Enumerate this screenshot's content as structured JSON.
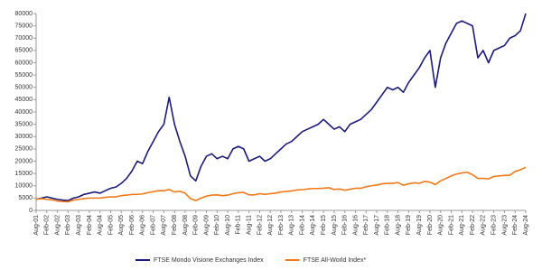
{
  "chart_data": {
    "type": "line",
    "categories": [
      "Aug-01",
      null,
      "Feb-02",
      null,
      "Aug-02",
      null,
      "Feb-03",
      null,
      "Aug-03",
      null,
      "Feb-04",
      null,
      "Aug-04",
      null,
      "Feb-05",
      null,
      "Aug-05",
      null,
      "Feb-06",
      null,
      "Aug-06",
      null,
      "Feb-07",
      null,
      "Aug-07",
      null,
      "Feb-08",
      null,
      "Aug-08",
      null,
      "Feb-09",
      null,
      "Aug-09",
      null,
      "Feb-10",
      null,
      "Aug-10",
      null,
      "Feb-11",
      null,
      "Aug-11",
      null,
      "Feb-12",
      null,
      "Aug-12",
      null,
      "Feb-13",
      null,
      "Aug-13",
      null,
      "Feb-14",
      null,
      "Aug-14",
      null,
      "Feb-15",
      null,
      "Aug-15",
      null,
      "Feb-16",
      null,
      "Aug-16",
      null,
      "Feb-17",
      null,
      "Aug-17",
      null,
      "Feb-18",
      null,
      "Aug-18",
      null,
      "Feb-19",
      null,
      "Aug-19",
      null,
      "Feb-20",
      null,
      "Aug-20",
      null,
      "Feb-21",
      null,
      "Aug-21",
      null,
      "Feb-22",
      null,
      "Aug-22",
      null,
      "Feb-23",
      null,
      "Aug-23",
      null,
      "Feb-24",
      null,
      "Aug-24"
    ],
    "series": [
      {
        "name": "FTSE Mondo Visione Exchanges Index",
        "color": "#1c1c78",
        "values": [
          4500,
          5000,
          5500,
          5000,
          4500,
          4200,
          4000,
          5000,
          5500,
          6500,
          7000,
          7500,
          7000,
          8000,
          9000,
          9500,
          11000,
          13000,
          16000,
          20000,
          19000,
          24000,
          28000,
          32000,
          35000,
          46000,
          35000,
          28000,
          22000,
          14000,
          12000,
          18000,
          22000,
          23000,
          21000,
          22000,
          21000,
          25000,
          26000,
          25000,
          20000,
          21000,
          22000,
          20000,
          21000,
          23000,
          25000,
          27000,
          28000,
          30000,
          32000,
          33000,
          34000,
          35000,
          37000,
          35000,
          33000,
          34000,
          32000,
          35000,
          36000,
          37000,
          39000,
          41000,
          44000,
          47000,
          50000,
          49000,
          50000,
          48000,
          52000,
          55000,
          58000,
          62000,
          65000,
          50000,
          62000,
          68000,
          72000,
          76000,
          77000,
          76000,
          75000,
          62000,
          65000,
          60000,
          65000,
          66000,
          67000,
          70000,
          71000,
          73000,
          80000
        ]
      },
      {
        "name": "FTSE All-World Index*",
        "color": "#f07a1a",
        "values": [
          4500,
          4800,
          4500,
          4300,
          3800,
          3600,
          3500,
          4200,
          4500,
          4800,
          5000,
          5000,
          5000,
          5300,
          5500,
          5500,
          6000,
          6200,
          6500,
          6500,
          6700,
          7200,
          7600,
          8000,
          8000,
          8500,
          7500,
          7800,
          7000,
          4800,
          4000,
          5000,
          5800,
          6200,
          6300,
          6000,
          6200,
          6800,
          7200,
          7300,
          6300,
          6300,
          6800,
          6500,
          6800,
          7000,
          7500,
          7700,
          7900,
          8300,
          8400,
          8700,
          8900,
          8900,
          9000,
          9200,
          8500,
          8700,
          8200,
          8600,
          9000,
          9000,
          9600,
          10000,
          10300,
          10800,
          11000,
          11000,
          11300,
          10200,
          10800,
          11200,
          11000,
          11800,
          11500,
          10500,
          12000,
          13000,
          14000,
          14800,
          15200,
          15500,
          14500,
          13000,
          13000,
          12800,
          13800,
          14000,
          14200,
          14300,
          15800,
          16500,
          17500
        ]
      }
    ],
    "ylim": [
      0,
      80000
    ],
    "yticks": [
      0,
      5000,
      10000,
      15000,
      20000,
      25000,
      30000,
      35000,
      40000,
      45000,
      50000,
      55000,
      60000,
      65000,
      70000,
      75000,
      80000
    ],
    "grid": false,
    "legend": "bottom"
  }
}
